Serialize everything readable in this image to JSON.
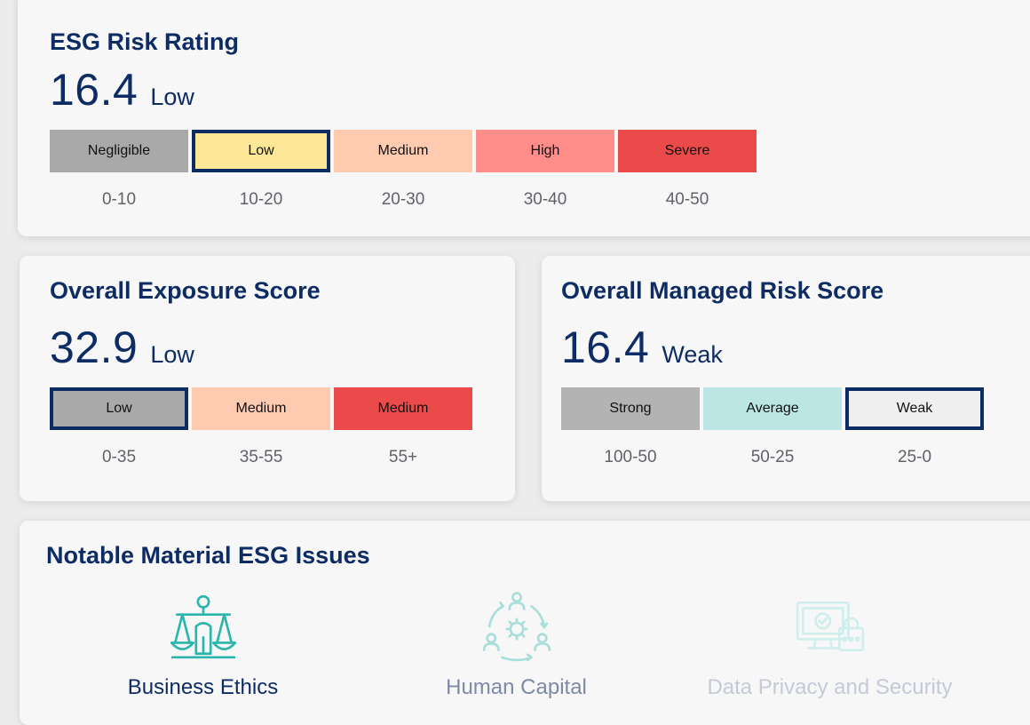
{
  "esg_risk": {
    "title": "ESG Risk Rating",
    "score": "16.4",
    "level": "Low",
    "scale": [
      {
        "label": "Negligible",
        "range": "0-10",
        "color": "#a9a9a9",
        "selected": false
      },
      {
        "label": "Low",
        "range": "10-20",
        "color": "#fde897",
        "selected": true
      },
      {
        "label": "Medium",
        "range": "20-30",
        "color": "#ffcbb0",
        "selected": false
      },
      {
        "label": "High",
        "range": "30-40",
        "color": "#ff8d8a",
        "selected": false
      },
      {
        "label": "Severe",
        "range": "40-50",
        "color": "#eb4a4a",
        "selected": false
      }
    ]
  },
  "exposure": {
    "title": "Overall Exposure Score",
    "score": "32.9",
    "level": "Low",
    "scale": [
      {
        "label": "Low",
        "range": "0-35",
        "color": "#a9a9a9",
        "selected": true
      },
      {
        "label": "Medium",
        "range": "35-55",
        "color": "#ffcbb0",
        "selected": false
      },
      {
        "label": "Medium",
        "range": "55+",
        "color": "#eb4a4a",
        "selected": false
      }
    ]
  },
  "managed": {
    "title": "Overall Managed Risk Score",
    "score": "16.4",
    "level": "Weak",
    "scale": [
      {
        "label": "Strong",
        "range": "100-50",
        "color": "#b3b3b3",
        "selected": false
      },
      {
        "label": "Average",
        "range": "50-25",
        "color": "#bbe6e4",
        "selected": false
      },
      {
        "label": "Weak",
        "range": "25-0",
        "color": "#efefef",
        "selected": true
      }
    ]
  },
  "issues": {
    "title": "Notable Material ESG Issues",
    "items": [
      {
        "label": "Business Ethics",
        "icon": "scales-of-justice-icon",
        "active": true
      },
      {
        "label": "Human Capital",
        "icon": "people-cycle-icon",
        "active": false
      },
      {
        "label": "Data Privacy and Security",
        "icon": "secure-computer-icon",
        "active": false
      }
    ]
  },
  "colors": {
    "title": "#0d2c63",
    "selected_border": "#0d2c63",
    "range_text": "#5f6368",
    "icon_teal": "#2bb5ad",
    "icon_teal_light": "#a9dedb",
    "icon_teal_faint": "#cfeeec",
    "label_muted": "#7d8aa6",
    "label_faint": "#c4cad6"
  }
}
